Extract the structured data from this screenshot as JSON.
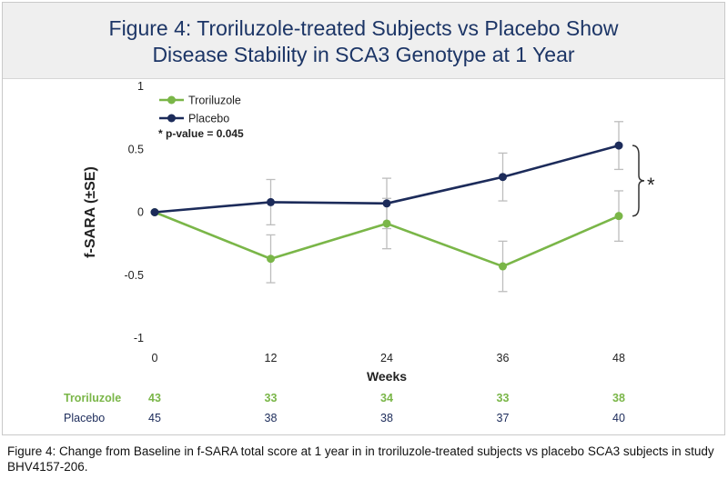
{
  "chart_data": {
    "type": "line",
    "title": "Figure 4: Troriluzole-treated Subjects vs Placebo Show Disease Stability in SCA3 Genotype at 1 Year",
    "title_lines": [
      "Figure 4: Troriluzole-treated Subjects vs Placebo Show",
      "Disease Stability in SCA3 Genotype at 1 Year"
    ],
    "xlabel": "Weeks",
    "ylabel": "f-SARA (±SE)",
    "x": [
      0,
      12,
      24,
      36,
      48
    ],
    "x_tick_labels": [
      "0",
      "12",
      "24",
      "36",
      "48"
    ],
    "ylim": [
      -1,
      1
    ],
    "y_ticks": [
      1,
      0.5,
      0,
      -0.5,
      -1
    ],
    "y_tick_labels": [
      "1",
      "0.5",
      "0",
      "-0.5",
      "-1"
    ],
    "grid": false,
    "legend_position": "top-left",
    "series": [
      {
        "name": "Troriluzole",
        "color": "#7ab648",
        "values": [
          0,
          -0.37,
          -0.09,
          -0.43,
          -0.03
        ],
        "se": [
          0,
          0.19,
          0.2,
          0.2,
          0.2
        ],
        "n": [
          "43",
          "33",
          "34",
          "33",
          "38"
        ]
      },
      {
        "name": "Placebo",
        "color": "#1c2b5a",
        "values": [
          0,
          0.08,
          0.07,
          0.28,
          0.53
        ],
        "se": [
          0,
          0.18,
          0.2,
          0.19,
          0.19
        ],
        "n": [
          "45",
          "38",
          "38",
          "37",
          "40"
        ]
      }
    ],
    "annotation": "* p-value = 0.045",
    "significance_marker": "*",
    "errorbar_color": "#bdbdbd"
  },
  "caption": "Figure 4: Change from Baseline in f-SARA total score at 1 year in in troriluzole-treated subjects vs placebo SCA3 subjects in study BHV4157-206."
}
